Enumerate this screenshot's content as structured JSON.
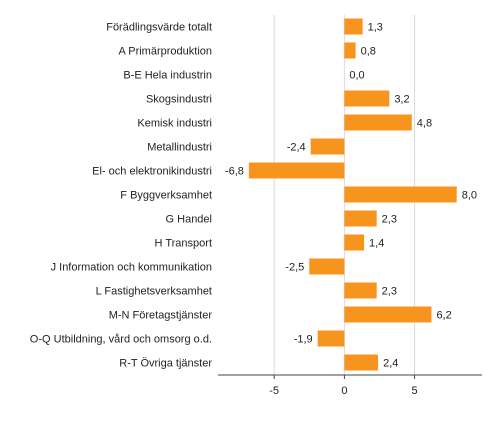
{
  "chart_data": {
    "type": "bar",
    "orientation": "horizontal",
    "categories": [
      "Förädlingsvärde totalt",
      "A Primärproduktion",
      "B-E Hela industrin",
      "Skogsindustri",
      "Kemisk industri",
      "Metallindustri",
      "El- och elektronikindustri",
      "F Byggverksamhet",
      "G Handel",
      "H Transport",
      "J Information och kommunikation",
      "L Fastighetsverksamhet",
      "M-N Företagstjänster",
      "O-Q Utbildning, vård och omsorg o.d.",
      "R-T Övriga tjänster"
    ],
    "values": [
      1.3,
      0.8,
      0.0,
      3.2,
      4.8,
      -2.4,
      -6.8,
      8.0,
      2.3,
      1.4,
      -2.5,
      2.3,
      6.2,
      -1.9,
      2.4
    ],
    "value_labels": [
      "1,3",
      "0,8",
      "0,0",
      "3,2",
      "4,8",
      "-2,4",
      "-6,8",
      "8,0",
      "2,3",
      "1,4",
      "-2,5",
      "2,3",
      "6,2",
      "-1,9",
      "2,4"
    ],
    "xlim": [
      -9,
      9.8
    ],
    "xticks": [
      -5,
      0,
      5
    ],
    "xtick_labels": [
      "-5",
      "0",
      "5"
    ],
    "grid": "vertical",
    "legend": "none",
    "bar_color": "#F7941D",
    "title": "",
    "xlabel": "",
    "ylabel": ""
  }
}
